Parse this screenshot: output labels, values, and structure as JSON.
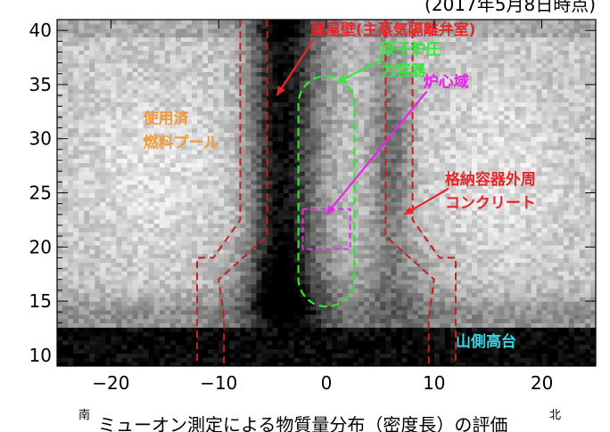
{
  "chart_data": {
    "type": "heatmap",
    "title": "",
    "subtitle": "(2017年5月8日時点)",
    "caption": "ミューオン測定による物質量分布（密度長）の評価",
    "xlabel": "",
    "ylabel": "",
    "xlim": [
      -25,
      25
    ],
    "ylim": [
      9,
      41
    ],
    "x_ticks": [
      -20,
      -10,
      0,
      10,
      20
    ],
    "y_ticks": [
      10,
      15,
      20,
      25,
      30,
      35,
      40
    ],
    "x_tick_labels": [
      "−20",
      "−10",
      "0",
      "10",
      "20"
    ],
    "y_tick_labels": [
      "10",
      "15",
      "20",
      "25",
      "30",
      "35",
      "40"
    ],
    "x_direction_labels": {
      "left": "南",
      "right": "北"
    },
    "colormap": "grayscale (black = high density length)",
    "grid": false,
    "annotations": [
      {
        "text": "建屋壁(主蒸気隔離弁室)",
        "color": "#e8262a",
        "x": -1.5,
        "y": 39.6,
        "arrow_to": [
          -4.6,
          34.0
        ]
      },
      {
        "text": "原子炉圧",
        "color": "#35e83a",
        "x": 5.0,
        "y": 37.8,
        "arrow_to": [
          1.0,
          35.2
        ]
      },
      {
        "text": "力容器",
        "color": "#35e83a",
        "x": 5.0,
        "y": 35.8
      },
      {
        "text": "炉心域",
        "color": "#e824e8",
        "x": 9.0,
        "y": 34.8,
        "arrow_to": [
          0.0,
          23.0
        ]
      },
      {
        "text": "使用済",
        "color": "#f39a3c",
        "x": -17.0,
        "y": 31.4
      },
      {
        "text": "燃料プール",
        "color": "#f39a3c",
        "x": -17.0,
        "y": 29.2
      },
      {
        "text": "格納容器外周",
        "color": "#e8262a",
        "x": 11.0,
        "y": 25.8,
        "arrow_to": [
          7.2,
          23.0
        ]
      },
      {
        "text": "コンクリート",
        "color": "#e8262a",
        "x": 11.0,
        "y": 23.6
      },
      {
        "text": "山側高台",
        "color": "#37d8e6",
        "x": 12.0,
        "y": 10.8
      }
    ],
    "overlays": {
      "building_wall_outline": {
        "color": "#c81e1e",
        "style": "dashed"
      },
      "reactor_pressure_vessel": {
        "color": "#2ee82e",
        "style": "dashed",
        "center_x": 0,
        "y_range": [
          14.5,
          35.8
        ],
        "half_width": 2.6
      },
      "core_region": {
        "color": "#e030e0",
        "style": "dashed",
        "x_range": [
          -2.2,
          2.2
        ],
        "y_range": [
          19.8,
          23.5
        ]
      }
    },
    "density_features": [
      {
        "feature": "dark band (high density)",
        "x_range": [
          -8,
          -2
        ],
        "y_range": [
          12,
          41
        ]
      },
      {
        "feature": "dark ground layer",
        "x_range": [
          -24,
          24
        ],
        "y_range": [
          9.5,
          12.5
        ]
      }
    ]
  }
}
